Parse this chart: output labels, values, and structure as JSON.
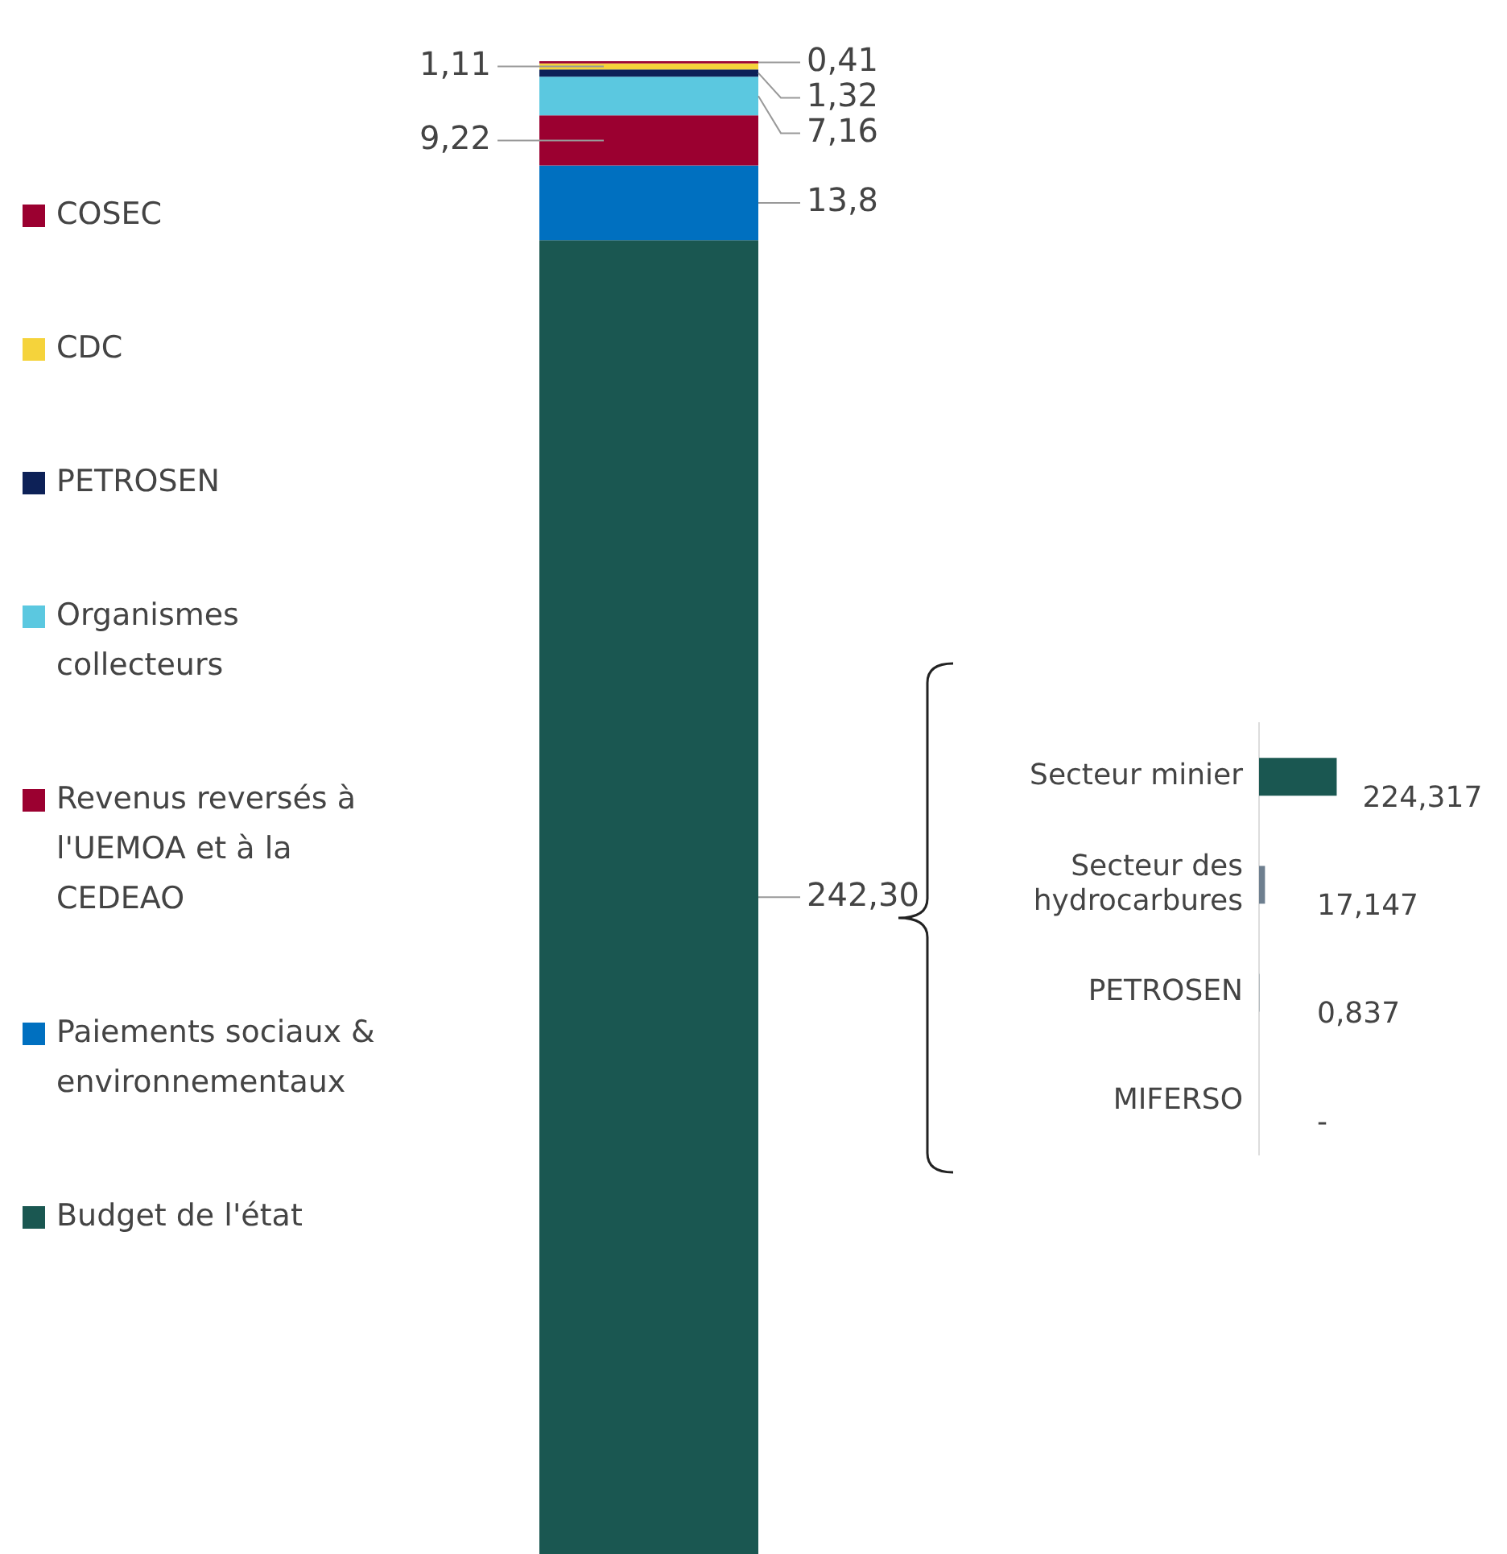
{
  "chart_data": [
    {
      "type": "bar",
      "stacked": true,
      "categories": [
        null
      ],
      "legend": "left",
      "tick_labels": false,
      "ylim": [
        0,
        275.32
      ],
      "series": [
        {
          "name": "Budget de l'état",
          "color": "#1a5751",
          "values": [
            242.3
          ],
          "value_labels": [
            "242,30"
          ]
        },
        {
          "name": "Paiements sociaux & environnementaux",
          "color": "#0070c0",
          "values": [
            13.8
          ],
          "value_labels": [
            "13,8"
          ]
        },
        {
          "name": "Revenus reversés à l'UEMOA et à la CEDEAO",
          "color": "#9b0030",
          "values": [
            9.22
          ],
          "value_labels": [
            "9,22"
          ]
        },
        {
          "name": "Organismes collecteurs",
          "color": "#5bc8e0",
          "values": [
            7.16
          ],
          "value_labels": [
            "7,16"
          ]
        },
        {
          "name": "PETROSEN",
          "color": "#0d2157",
          "values": [
            1.32
          ],
          "value_labels": [
            "1,32"
          ]
        },
        {
          "name": "CDC",
          "color": "#f5d33b",
          "values": [
            1.11
          ],
          "value_labels": [
            "1,11"
          ]
        },
        {
          "name": "COSEC",
          "color": "#9b0030",
          "values": [
            0.41
          ],
          "value_labels": [
            "0,41"
          ]
        }
      ]
    },
    {
      "type": "bar",
      "orientation": "horizontal",
      "tick_labels": "y",
      "categories": [
        "Secteur minier",
        "Secteur des hydrocarbures",
        "PETROSEN",
        "MIFERSO"
      ],
      "values": [
        224.317,
        17.147,
        0.837,
        null
      ],
      "colors": [
        "#1a5751",
        "#6e7f8f",
        "#6e7f8f",
        "#6e7f8f"
      ],
      "value_labels": [
        "224,317",
        "17,147",
        "0,837",
        "-"
      ]
    }
  ]
}
